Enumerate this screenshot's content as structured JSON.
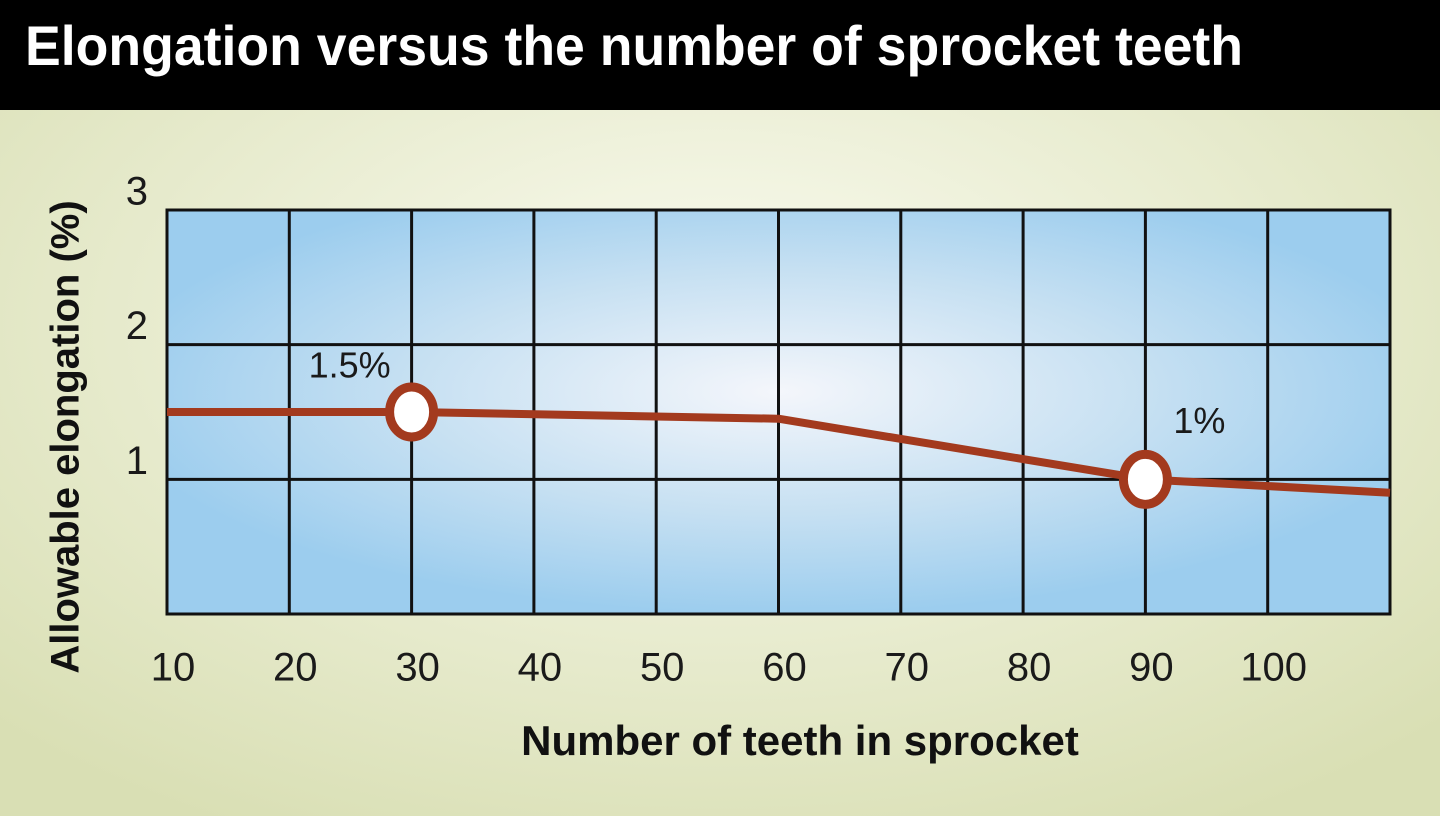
{
  "chart_data": {
    "type": "line",
    "title": "Elongation versus the number of sprocket teeth",
    "x_label": "Number of teeth in sprocket",
    "y_label": "Allowable elongation  (%)",
    "x": [
      10,
      30,
      60,
      90,
      110
    ],
    "values": [
      1.5,
      1.5,
      1.45,
      1.0,
      0.9
    ],
    "color": "#a33a1e",
    "highlights": {
      "x": [
        30,
        90
      ],
      "values": [
        1.5,
        1
      ],
      "value_labels": [
        "1.5%",
        "1%"
      ]
    },
    "xlim": [
      10,
      110
    ],
    "xticks": [
      10,
      20,
      30,
      40,
      50,
      60,
      70,
      80,
      90,
      100
    ],
    "ylim": [
      0,
      3
    ],
    "yticks": [
      1,
      2,
      3
    ],
    "grid": true
  }
}
